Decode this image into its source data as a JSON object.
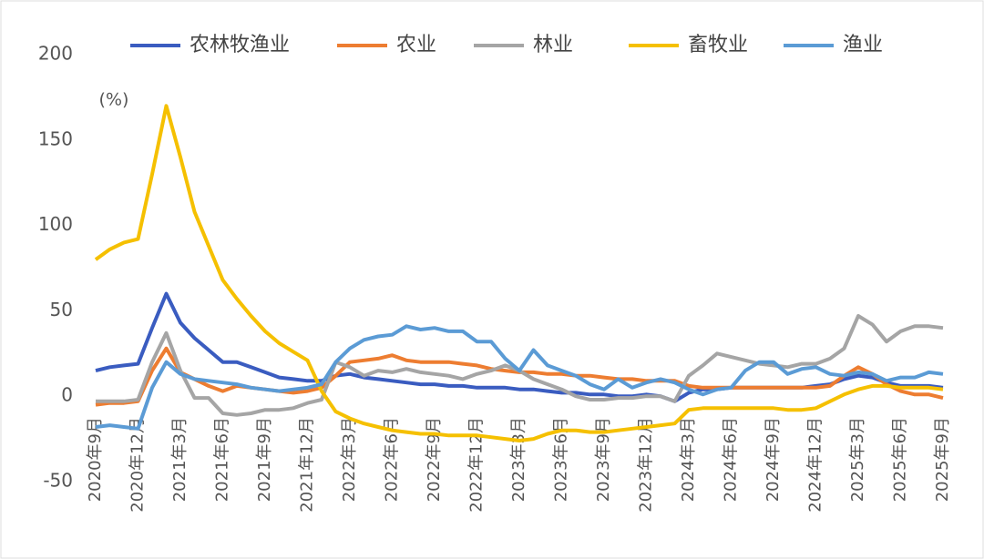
{
  "chart_data": {
    "type": "line",
    "unit_label": "(%)",
    "categories": [
      "2020年9月",
      null,
      null,
      "2020年12月",
      null,
      null,
      "2021年3月",
      null,
      null,
      "2021年6月",
      null,
      null,
      "2021年9月",
      null,
      null,
      "2021年12月",
      null,
      null,
      "2022年3月",
      null,
      null,
      "2022年6月",
      null,
      null,
      "2022年9月",
      null,
      null,
      "2022年12月",
      null,
      null,
      "2023年3月",
      null,
      null,
      "2023年6月",
      null,
      null,
      "2023年9月",
      null,
      null,
      "2023年12月",
      null,
      null,
      "2024年3月",
      null,
      null,
      "2024年6月",
      null,
      null,
      "2024年9月",
      null,
      null,
      "2024年12月",
      null,
      null,
      "2025年3月",
      null,
      null,
      "2025年6月",
      null,
      null,
      "2025年9月"
    ],
    "ylim": [
      -50,
      200
    ],
    "yticks": [
      -50,
      0,
      50,
      100,
      150,
      200
    ],
    "series": [
      {
        "name": "农林牧渔业",
        "color": "#3a5cc0",
        "values": [
          15,
          17,
          18,
          19,
          40,
          60,
          43,
          34,
          27,
          20,
          20,
          17,
          14,
          11,
          10,
          9,
          9,
          12,
          13,
          11,
          10,
          9,
          8,
          7,
          7,
          6,
          6,
          5,
          5,
          5,
          4,
          4,
          3,
          2,
          2,
          1,
          1,
          0,
          0,
          1,
          0,
          -3,
          2,
          4,
          4,
          5,
          5,
          5,
          5,
          5,
          5,
          6,
          7,
          10,
          12,
          11,
          8,
          6,
          6,
          6,
          5
        ]
      },
      {
        "name": "农业",
        "color": "#ed7d31",
        "values": [
          -5,
          -4,
          -4,
          -3,
          15,
          28,
          14,
          10,
          6,
          3,
          6,
          5,
          4,
          3,
          2,
          3,
          5,
          12,
          20,
          21,
          22,
          24,
          21,
          20,
          20,
          20,
          19,
          18,
          16,
          15,
          14,
          14,
          13,
          13,
          12,
          12,
          11,
          10,
          10,
          9,
          9,
          9,
          6,
          5,
          5,
          5,
          5,
          5,
          5,
          5,
          5,
          5,
          6,
          12,
          17,
          13,
          7,
          3,
          1,
          1,
          -1
        ]
      },
      {
        "name": "林业",
        "color": "#a5a5a5",
        "values": [
          -3,
          -3,
          -3,
          -2,
          20,
          37,
          15,
          -1,
          -1,
          -10,
          -11,
          -10,
          -8,
          -8,
          -7,
          -4,
          -2,
          20,
          17,
          12,
          15,
          14,
          16,
          14,
          13,
          12,
          10,
          13,
          15,
          18,
          15,
          10,
          7,
          4,
          0,
          -2,
          -2,
          -1,
          -1,
          0,
          0,
          -3,
          12,
          18,
          25,
          23,
          21,
          19,
          18,
          17,
          19,
          19,
          22,
          28,
          47,
          42,
          32,
          38,
          41,
          41,
          40
        ]
      },
      {
        "name": "畜牧业",
        "color": "#f5c000",
        "values": [
          80,
          86,
          90,
          92,
          130,
          170,
          140,
          108,
          88,
          68,
          57,
          47,
          38,
          31,
          26,
          21,
          3,
          -9,
          -13,
          -16,
          -18,
          -20,
          -21,
          -22,
          -22,
          -23,
          -23,
          -23,
          -24,
          -25,
          -26,
          -25,
          -22,
          -20,
          -20,
          -21,
          -21,
          -20,
          -19,
          -18,
          -17,
          -16,
          -8,
          -7,
          -7,
          -7,
          -7,
          -7,
          -7,
          -8,
          -8,
          -7,
          -3,
          1,
          4,
          6,
          6,
          5,
          5,
          5,
          4
        ]
      },
      {
        "name": "渔业",
        "color": "#5b9bd5",
        "values": [
          -18,
          -17,
          -18,
          -19,
          5,
          20,
          13,
          10,
          9,
          8,
          7,
          5,
          4,
          3,
          4,
          5,
          7,
          20,
          28,
          33,
          35,
          36,
          41,
          39,
          40,
          38,
          38,
          32,
          32,
          22,
          15,
          27,
          18,
          15,
          12,
          7,
          4,
          10,
          5,
          8,
          10,
          8,
          4,
          1,
          4,
          5,
          15,
          20,
          20,
          13,
          16,
          17,
          13,
          12,
          14,
          13,
          9,
          11,
          11,
          14,
          13
        ]
      }
    ]
  }
}
